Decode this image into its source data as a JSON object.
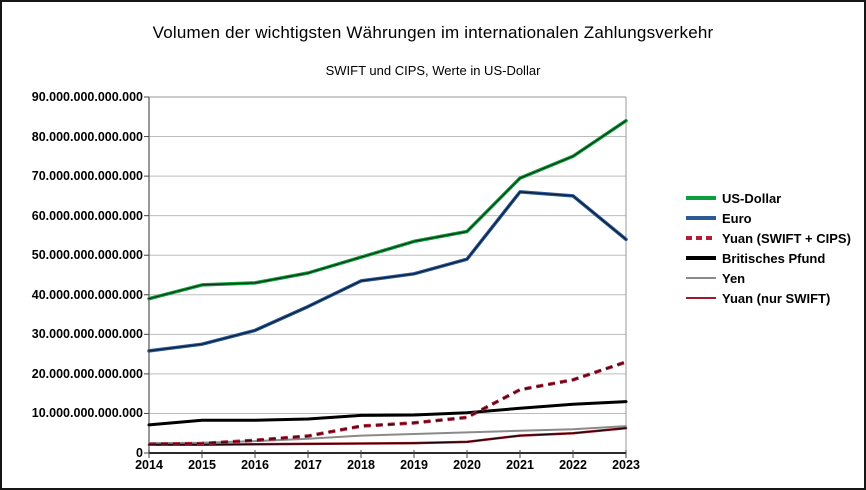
{
  "chart_data": {
    "type": "line",
    "title": "Volumen der wichtigsten Währungen im internationalen Zahlungsverkehr",
    "subtitle": "SWIFT und CIPS, Werte in US-Dollar",
    "x_tick_labels": [
      "2014",
      "2015",
      "2016",
      "2017",
      "2018",
      "2019",
      "2020",
      "2021",
      "2022",
      "2023"
    ],
    "y_tick_labels": [
      "90.000.000.000.000",
      "80.000.000.000.000",
      "70.000.000.000.000",
      "60.000.000.000.000",
      "50.000.000.000.000",
      "40.000.000.000.000",
      "30.000.000.000.000",
      "20.000.000.000.000",
      "10.000.000.000.000",
      "0"
    ],
    "ylim": [
      0,
      90000000000000
    ],
    "values_unit": "US-Dollar (Werte in Billionen, 10^12)",
    "grid": "horizontal",
    "legend_position": "right",
    "series": [
      {
        "name": "US-Dollar",
        "color": "#0a9e3c",
        "core": "#0d2f15",
        "dashed": false,
        "width": 3.5,
        "values_in_trillions": [
          39,
          42.5,
          43,
          45.5,
          49.5,
          53.5,
          56,
          69.5,
          75,
          84
        ]
      },
      {
        "name": "Euro",
        "color": "#2b5a97",
        "core": "#0a1b33",
        "dashed": false,
        "width": 3.5,
        "values_in_trillions": [
          25.8,
          27.5,
          31,
          37,
          43.5,
          45.3,
          49,
          66,
          65,
          54
        ]
      },
      {
        "name": "Yuan (SWIFT + CIPS)",
        "color": "#ae1d39",
        "core": "#33000c",
        "dashed": true,
        "width": 3.5,
        "values_in_trillions": [
          2.2,
          2.4,
          3.2,
          4.3,
          6.8,
          7.6,
          9,
          16,
          18.5,
          23
        ]
      },
      {
        "name": "Britisches Pfund",
        "color": "#000000",
        "core": null,
        "dashed": false,
        "width": 3,
        "values_in_trillions": [
          7.1,
          8.3,
          8.3,
          8.6,
          9.5,
          9.6,
          10.2,
          11.3,
          12.3,
          13
        ]
      },
      {
        "name": "Yen",
        "color": "#8a8a8a",
        "core": null,
        "dashed": false,
        "width": 2,
        "values_in_trillions": [
          2.5,
          2.6,
          3,
          3.6,
          4.4,
          4.8,
          5.2,
          5.6,
          6,
          6.8
        ]
      },
      {
        "name": "Yuan (nur SWIFT)",
        "color": "#9c1b29",
        "core": "#200309",
        "dashed": false,
        "width": 2.5,
        "values_in_trillions": [
          2.1,
          2.1,
          2.2,
          2.3,
          2.4,
          2.5,
          2.8,
          4.4,
          5,
          6.3
        ]
      }
    ],
    "colors": {
      "gridline": "#bdbdbd",
      "plot_border": "#999999",
      "axis": "#2b2b2b",
      "frame_border": "#161616",
      "background": "#ffffff"
    }
  }
}
